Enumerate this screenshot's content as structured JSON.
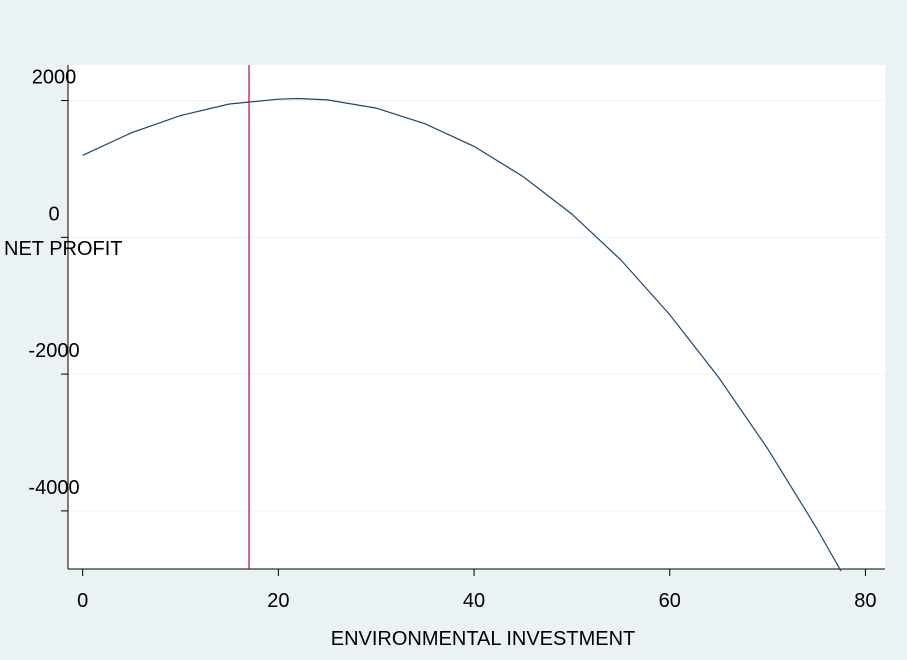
{
  "chart_data": {
    "type": "line",
    "title": "",
    "xlabel": "ENVIRONMENTAL INVESTMENT",
    "ylabel": "NET PROFIT",
    "xlim": [
      -1.5,
      82
    ],
    "ylim": [
      -4850,
      2520
    ],
    "x_ticks": [
      0,
      20,
      40,
      60,
      80
    ],
    "x_tick_labels": [
      "0",
      "20",
      "40",
      "60",
      "80"
    ],
    "y_ticks": [
      2000,
      0,
      -2000,
      -4000
    ],
    "y_tick_labels": [
      "2000",
      "0",
      "-2000",
      "-4000"
    ],
    "grid": "horizontal",
    "legend": "none",
    "series": [
      {
        "color": "#1a476f",
        "x": [
          0,
          5,
          10,
          15,
          20,
          22,
          25,
          30,
          35,
          40,
          45,
          50,
          55,
          60,
          65,
          70,
          75,
          77.5
        ],
        "y": [
          1200,
          1530,
          1780,
          1950,
          2020,
          2030,
          2010,
          1890,
          1660,
          1330,
          890,
          340,
          -330,
          -1130,
          -2050,
          -3090,
          -4250,
          -4880
        ]
      }
    ],
    "reference_line": {
      "orientation": "vertical",
      "x": 17,
      "color": "#c10534"
    },
    "colors": {
      "background": "#eaf2f3",
      "plot_background": "#ffffff",
      "grid": "#eaf2f3"
    }
  }
}
